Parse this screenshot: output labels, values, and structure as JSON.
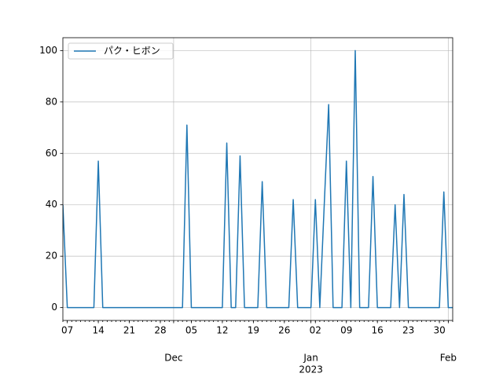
{
  "chart_data": {
    "type": "line",
    "x": [
      "2022-11-06",
      "2022-11-07",
      "2022-11-08",
      "2022-11-09",
      "2022-11-10",
      "2022-11-11",
      "2022-11-12",
      "2022-11-13",
      "2022-11-14",
      "2022-11-15",
      "2022-11-16",
      "2022-11-17",
      "2022-11-18",
      "2022-11-19",
      "2022-11-20",
      "2022-11-21",
      "2022-11-22",
      "2022-11-23",
      "2022-11-24",
      "2022-11-25",
      "2022-11-26",
      "2022-11-27",
      "2022-11-28",
      "2022-11-29",
      "2022-11-30",
      "2022-12-01",
      "2022-12-02",
      "2022-12-03",
      "2022-12-04",
      "2022-12-05",
      "2022-12-06",
      "2022-12-07",
      "2022-12-08",
      "2022-12-09",
      "2022-12-10",
      "2022-12-11",
      "2022-12-12",
      "2022-12-13",
      "2022-12-14",
      "2022-12-15",
      "2022-12-16",
      "2022-12-17",
      "2022-12-18",
      "2022-12-19",
      "2022-12-20",
      "2022-12-21",
      "2022-12-22",
      "2022-12-23",
      "2022-12-24",
      "2022-12-25",
      "2022-12-26",
      "2022-12-27",
      "2022-12-28",
      "2022-12-29",
      "2022-12-30",
      "2022-12-31",
      "2023-01-01",
      "2023-01-02",
      "2023-01-03",
      "2023-01-04",
      "2023-01-05",
      "2023-01-06",
      "2023-01-07",
      "2023-01-08",
      "2023-01-09",
      "2023-01-10",
      "2023-01-11",
      "2023-01-12",
      "2023-01-13",
      "2023-01-14",
      "2023-01-15",
      "2023-01-16",
      "2023-01-17",
      "2023-01-18",
      "2023-01-19",
      "2023-01-20",
      "2023-01-21",
      "2023-01-22",
      "2023-01-23",
      "2023-01-24",
      "2023-01-25",
      "2023-01-26",
      "2023-01-27",
      "2023-01-28",
      "2023-01-29",
      "2023-01-30",
      "2023-01-31",
      "2023-02-01",
      "2023-02-02"
    ],
    "series": [
      {
        "name": "パク・ヒボン",
        "color": "#1f77b4",
        "values": [
          40,
          0,
          0,
          0,
          0,
          0,
          0,
          0,
          57,
          0,
          0,
          0,
          0,
          0,
          0,
          0,
          0,
          0,
          0,
          0,
          0,
          0,
          0,
          0,
          0,
          0,
          0,
          0,
          71,
          0,
          0,
          0,
          0,
          0,
          0,
          0,
          0,
          64,
          0,
          0,
          59,
          0,
          0,
          0,
          0,
          49,
          0,
          0,
          0,
          0,
          0,
          0,
          42,
          0,
          0,
          0,
          0,
          42,
          0,
          40,
          79,
          0,
          0,
          0,
          57,
          0,
          100,
          0,
          0,
          0,
          51,
          0,
          0,
          0,
          0,
          40,
          0,
          44,
          0,
          0,
          0,
          0,
          0,
          0,
          0,
          0,
          45,
          0,
          0
        ]
      }
    ],
    "xlim": [
      "2022-11-06",
      "2023-02-02"
    ],
    "xticks": [
      {
        "value": "2022-11-07",
        "label": "07"
      },
      {
        "value": "2022-11-14",
        "label": "14"
      },
      {
        "value": "2022-11-21",
        "label": "21"
      },
      {
        "value": "2022-11-28",
        "label": "28"
      },
      {
        "value": "2022-12-05",
        "label": "05"
      },
      {
        "value": "2022-12-12",
        "label": "12"
      },
      {
        "value": "2022-12-19",
        "label": "19"
      },
      {
        "value": "2022-12-26",
        "label": "26"
      },
      {
        "value": "2023-01-02",
        "label": "02"
      },
      {
        "value": "2023-01-09",
        "label": "09"
      },
      {
        "value": "2023-01-16",
        "label": "16"
      },
      {
        "value": "2023-01-23",
        "label": "23"
      },
      {
        "value": "2023-01-30",
        "label": "30"
      }
    ],
    "xticks_major": [
      {
        "value": "2022-12-01",
        "label": [
          "Dec"
        ]
      },
      {
        "value": "2023-01-01",
        "label": [
          "Jan",
          "2023"
        ]
      },
      {
        "value": "2023-02-01",
        "label": [
          "Feb"
        ]
      }
    ],
    "ylim": [
      -5,
      105
    ],
    "yticks": [
      0,
      20,
      40,
      60,
      80,
      100
    ],
    "grid": true,
    "legend": "upper left"
  }
}
